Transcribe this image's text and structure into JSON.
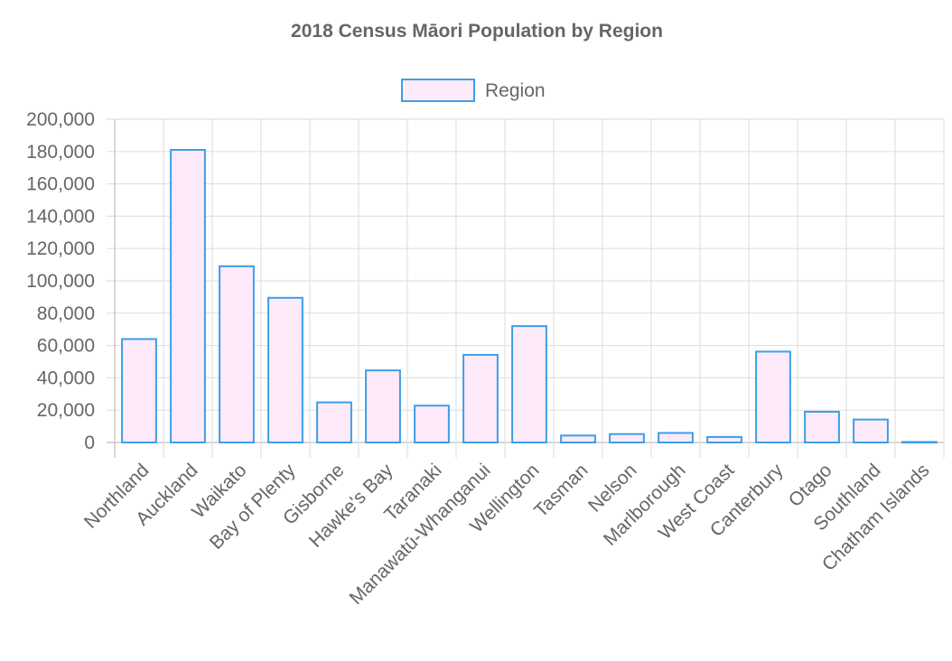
{
  "colors": {
    "bar_fill": "#fdeafa",
    "bar_stroke": "#3e9ee6",
    "text": "#666666",
    "grid": "#e1e1e1"
  },
  "chart_data": {
    "type": "bar",
    "title": "2018 Census Māori Population by Region",
    "legend": {
      "position": "top",
      "label": "Region"
    },
    "grid": true,
    "categories": [
      "Northland",
      "Auckland",
      "Waikato",
      "Bay of Plenty",
      "Gisborne",
      "Hawke's Bay",
      "Taranaki",
      "Manawatū-Whanganui",
      "Wellington",
      "Tasman",
      "Nelson",
      "Marlborough",
      "West Coast",
      "Canterbury",
      "Otago",
      "Southland",
      "Chatham Islands"
    ],
    "series": [
      {
        "name": "Region",
        "values": [
          64000,
          181000,
          109000,
          89500,
          24800,
          44600,
          22800,
          54200,
          72000,
          4300,
          5200,
          5900,
          3400,
          56200,
          19000,
          14200,
          300
        ]
      }
    ],
    "ylim": [
      0,
      200000
    ],
    "yticks": [
      0,
      20000,
      40000,
      60000,
      80000,
      100000,
      120000,
      140000,
      160000,
      180000,
      200000
    ],
    "xlabel": "",
    "ylabel": ""
  }
}
